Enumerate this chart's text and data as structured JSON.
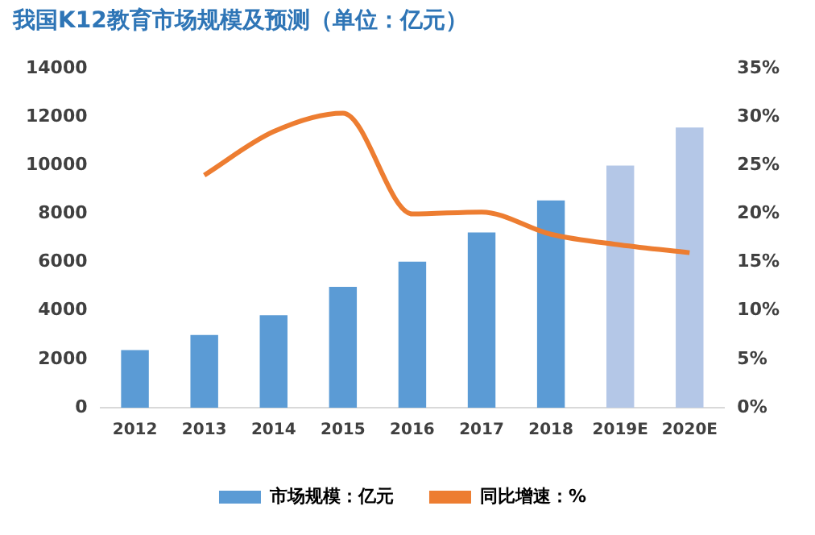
{
  "chart_data": {
    "type": "bar",
    "title": "我国K12教育市场规模及预测（单位：亿元）",
    "categories": [
      "2012",
      "2013",
      "2014",
      "2015",
      "2016",
      "2017",
      "2018",
      "2019E",
      "2020E"
    ],
    "series": [
      {
        "name": "市场规模：亿元",
        "type": "bar",
        "color": "#5b9bd5",
        "colors": [
          "#5b9bd5",
          "#5b9bd5",
          "#5b9bd5",
          "#5b9bd5",
          "#5b9bd5",
          "#5b9bd5",
          "#5b9bd5",
          "#b4c7e7",
          "#b4c7e7"
        ],
        "values": [
          2380,
          3000,
          3820,
          4990,
          6030,
          7240,
          8560,
          10000,
          11570
        ]
      },
      {
        "name": "同比增速：%",
        "type": "line",
        "axis": "y2",
        "color": "#ed7d31",
        "values": [
          null,
          24,
          28.5,
          30.4,
          20,
          20.2,
          17.9,
          16.8,
          16
        ]
      }
    ],
    "ylim": [
      0,
      14000
    ],
    "yticks": [
      0,
      2000,
      4000,
      6000,
      8000,
      10000,
      12000,
      14000
    ],
    "y2lim": [
      0,
      35
    ],
    "y2ticks": [
      {
        "value": 0,
        "label": "0%"
      },
      {
        "value": 5,
        "label": "5%"
      },
      {
        "value": 10,
        "label": "10%"
      },
      {
        "value": 15,
        "label": "15%"
      },
      {
        "value": 20,
        "label": "20%"
      },
      {
        "value": 25,
        "label": "25%"
      },
      {
        "value": 30,
        "label": "30%"
      },
      {
        "value": 35,
        "label": "35%"
      }
    ],
    "grid": false,
    "legend": "bottom",
    "marker": "none"
  }
}
